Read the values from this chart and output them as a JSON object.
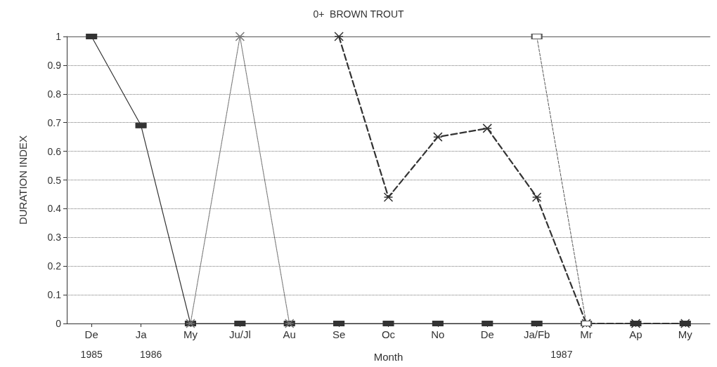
{
  "chart_data": {
    "type": "line",
    "title": "0+  BROWN TROUT",
    "xlabel": "Month",
    "ylabel": "DURATION INDEX",
    "categories": [
      "De",
      "Ja",
      "My",
      "Ju/Jl",
      "Au",
      "Se",
      "Oc",
      "No",
      "De",
      "Ja/Fb",
      "Mr",
      "Ap",
      "My"
    ],
    "series": [
      {
        "color": "#333333",
        "marker": "square",
        "line_style": "solid",
        "values": [
          1,
          0.69,
          0,
          0,
          0,
          0,
          0,
          0,
          0,
          0,
          0,
          0,
          0
        ]
      },
      {
        "color": "#777777",
        "marker": "cross",
        "line_style": "dotted",
        "values": [
          null,
          null,
          0,
          1,
          0,
          null,
          null,
          null,
          null,
          null,
          null,
          null,
          null
        ]
      },
      {
        "color": "#333333",
        "marker": "cross",
        "line_style": "dashed",
        "values": [
          null,
          null,
          null,
          null,
          null,
          1,
          0.44,
          0.65,
          0.68,
          0.44,
          0,
          0,
          0
        ]
      },
      {
        "color": "#555555",
        "marker": "square",
        "line_style": "dashed",
        "values": [
          null,
          null,
          null,
          null,
          null,
          null,
          null,
          null,
          null,
          1,
          0,
          null,
          null
        ]
      }
    ],
    "ylim": [
      0,
      1
    ],
    "yticks": [
      0,
      0.1,
      0.2,
      0.3,
      0.4,
      0.5,
      0.6,
      0.7,
      0.8,
      0.9,
      1
    ],
    "grid": "y",
    "annotations": [
      "1985",
      "1986",
      "1987"
    ]
  }
}
